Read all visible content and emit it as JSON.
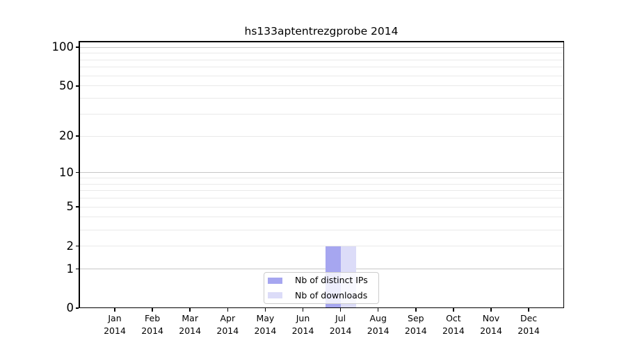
{
  "chart_data": {
    "type": "bar",
    "title": "hs133aptentrezgprobe 2014",
    "scale": "log1p",
    "categories": [
      "Jan 2014",
      "Feb 2014",
      "Mar 2014",
      "Apr 2014",
      "May 2014",
      "Jun 2014",
      "Jul 2014",
      "Aug 2014",
      "Sep 2014",
      "Oct 2014",
      "Nov 2014",
      "Dec 2014"
    ],
    "series": [
      {
        "name": "Nb of distinct IPs",
        "color": "#a6a6f0",
        "values": [
          0,
          0,
          0,
          0,
          0,
          0,
          2,
          0,
          0,
          0,
          0,
          0
        ]
      },
      {
        "name": "Nb of downloads",
        "color": "#dcdcf8",
        "values": [
          0,
          0,
          0,
          0,
          0,
          0,
          2,
          0,
          0,
          0,
          0,
          0
        ]
      }
    ],
    "yticks": [
      0,
      1,
      2,
      5,
      10,
      20,
      50,
      100
    ],
    "ylim": [
      0,
      112
    ],
    "xlabel": "",
    "ylabel": "",
    "grid": {
      "major": [
        1,
        10,
        100
      ],
      "minor": [
        2,
        3,
        4,
        5,
        6,
        7,
        8,
        9,
        20,
        30,
        40,
        50,
        60,
        70,
        80,
        90
      ]
    },
    "legend_position": "bottom-center",
    "colors": {
      "major_grid": "#c6c6c6",
      "minor_grid": "#e9e9e9",
      "axis": "#000000",
      "legend_border": "#cccccc"
    }
  }
}
